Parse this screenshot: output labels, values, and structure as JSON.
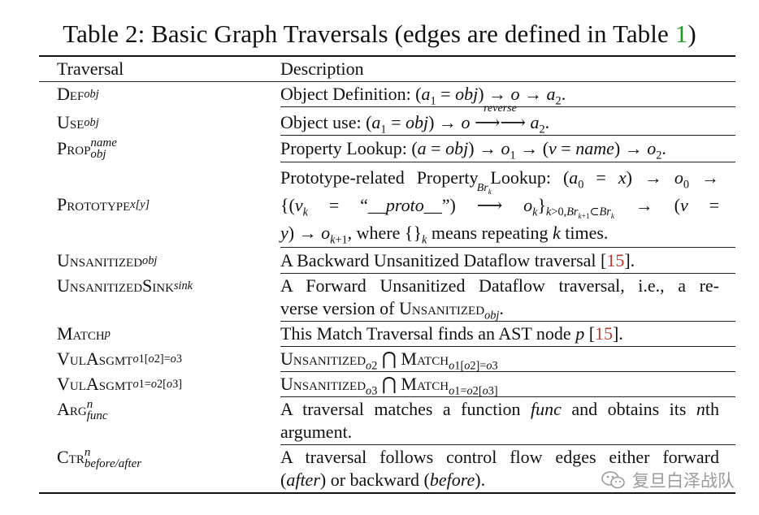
{
  "caption": {
    "text": "Table 2: Basic Graph Traversals (edges are defined in Table ",
    "ref": "1",
    "close": ")"
  },
  "header": {
    "col1": "Traversal",
    "col2": "Description"
  },
  "rows": {
    "def": {
      "name": "Def",
      "sub": "obj",
      "desc": "Object Definition: (a₁ = obj) → o → a₂."
    },
    "use": {
      "name": "Use",
      "sub": "obj",
      "desc_pre": "Object use: (a₁ = obj) → o ",
      "arrow_label": "reverse",
      "desc_post": " a₂."
    },
    "prop": {
      "name": "Prop",
      "sup": "name",
      "sub": "obj",
      "desc": "Property Lookup: (a = obj) → o₁ → (v = name) → o₂."
    },
    "proto": {
      "name": "Prototype",
      "sub": "x[y]",
      "lines": [
        "Prototype-related Property Lookup: (a₀ = x) → o₀ →",
        "{(vₖ = “__proto__”) ⟶ oₖ}ₖ>0,Brₖ₊₁⊂Brₖ → (v =",
        "y) → oₖ₊₁, where {}ₖ means repeating k times."
      ],
      "arrow_label": "Brₖ"
    },
    "unsan": {
      "name": "Unsanitized",
      "sub": "obj",
      "desc_pre": "A Backward Unsanitized Dataflow traversal [",
      "cite": "15",
      "desc_post": "]."
    },
    "unsink": {
      "name": "UnsanitizedSink",
      "sub": "sink",
      "lines": [
        "A Forward Unsanitized Dataflow traversal, i.e., a re-",
        "verse version of Unsanitizedₒᵦⱼ."
      ]
    },
    "match": {
      "name": "Match",
      "sub": "p",
      "desc_pre": "This Match Traversal finds an AST node p [",
      "cite": "15",
      "desc_post": "]."
    },
    "vul1": {
      "name": "VulAsgmt",
      "sub": "o1[o2]=o3",
      "desc": "Unsanitizedₒ₂ ⋂ Matchₒ₁[ₒ₂]=ₒ₃"
    },
    "vul2": {
      "name": "VulAsgmt",
      "sub": "o1=o2[o3]",
      "desc": "Unsanitizedₒ₃ ⋂ Matchₒ₁=ₒ₂[ₒ₃]"
    },
    "arg": {
      "name": "Arg",
      "sup": "n",
      "sub": "func",
      "lines": [
        "A traversal matches a function func and obtains its nth",
        "argument."
      ]
    },
    "ctr": {
      "name": "Ctr",
      "sup": "n",
      "sub": "before/after",
      "lines": [
        "A traversal follows control flow edges either forward",
        "(after) or backward (before)."
      ]
    }
  },
  "watermark": {
    "text": "复旦白泽战队",
    "icon": "wechat-icon"
  }
}
